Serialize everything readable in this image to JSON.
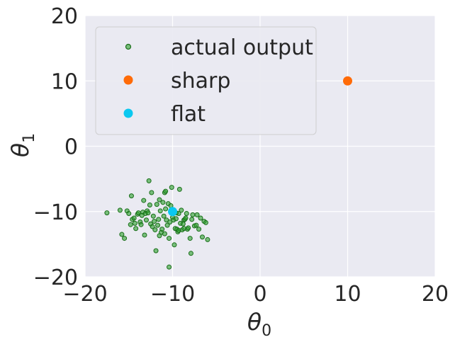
{
  "chart_data": {
    "type": "scatter",
    "title": "",
    "xlabel": "θ",
    "xlabel_sub": "0",
    "ylabel": "θ",
    "ylabel_sub": "1",
    "xlim": [
      -20,
      20
    ],
    "ylim": [
      -20,
      20
    ],
    "xticks": [
      -20,
      -10,
      0,
      10,
      20
    ],
    "yticks": [
      -20,
      -10,
      0,
      10,
      20
    ],
    "xtick_labels": [
      "−20",
      "−10",
      "0",
      "10",
      "20"
    ],
    "ytick_labels": [
      "−20",
      "−10",
      "0",
      "10",
      "20"
    ],
    "grid": true,
    "legend_position": "top-left",
    "series": [
      {
        "name": "actual output",
        "color": "#2ca02c",
        "marker": "small-circle",
        "points": [
          [
            -17.5,
            -10.2
          ],
          [
            -16.0,
            -9.8
          ],
          [
            -15.8,
            -13.5
          ],
          [
            -15.5,
            -14.1
          ],
          [
            -15.2,
            -9.9
          ],
          [
            -15.0,
            -10.3
          ],
          [
            -14.8,
            -12.0
          ],
          [
            -14.7,
            -7.6
          ],
          [
            -14.6,
            -11.2
          ],
          [
            -14.4,
            -11.0
          ],
          [
            -14.2,
            -12.6
          ],
          [
            -14.0,
            -10.4
          ],
          [
            -13.9,
            -10.2
          ],
          [
            -13.7,
            -11.6
          ],
          [
            -13.6,
            -12.0
          ],
          [
            -13.4,
            -10.1
          ],
          [
            -13.3,
            -8.3
          ],
          [
            -13.2,
            -13.6
          ],
          [
            -13.1,
            -10.3
          ],
          [
            -12.9,
            -9.9
          ],
          [
            -12.7,
            -5.3
          ],
          [
            -12.6,
            -9.0
          ],
          [
            -12.5,
            -11.9
          ],
          [
            -12.4,
            -7.1
          ],
          [
            -12.3,
            -12.3
          ],
          [
            -12.2,
            -10.7
          ],
          [
            -12.0,
            -12.8
          ],
          [
            -11.9,
            -16.0
          ],
          [
            -11.8,
            -8.9
          ],
          [
            -11.7,
            -12.1
          ],
          [
            -11.6,
            -11.2
          ],
          [
            -11.5,
            -8.2
          ],
          [
            -11.4,
            -9.9
          ],
          [
            -11.3,
            -13.2
          ],
          [
            -11.2,
            -12.7
          ],
          [
            -11.1,
            -8.6
          ],
          [
            -11.0,
            -10.7
          ],
          [
            -10.9,
            -7.1
          ],
          [
            -10.8,
            -6.9
          ],
          [
            -10.7,
            -11.3
          ],
          [
            -10.6,
            -12.1
          ],
          [
            -10.5,
            -8.8
          ],
          [
            -10.4,
            -14.1
          ],
          [
            -10.3,
            -11.6
          ],
          [
            -10.2,
            -9.1
          ],
          [
            -10.1,
            -6.3
          ],
          [
            -10.0,
            -10.9
          ],
          [
            -9.9,
            -11.3
          ],
          [
            -9.8,
            -15.1
          ],
          [
            -9.7,
            -12.6
          ],
          [
            -9.6,
            -11.1
          ],
          [
            -9.5,
            -12.7
          ],
          [
            -9.4,
            -13.1
          ],
          [
            -9.3,
            -10.3
          ],
          [
            -9.2,
            -6.6
          ],
          [
            -9.1,
            -11.8
          ],
          [
            -9.0,
            -9.8
          ],
          [
            -8.9,
            -12.8
          ],
          [
            -8.8,
            -11.9
          ],
          [
            -8.7,
            -11.3
          ],
          [
            -8.6,
            -11.2
          ],
          [
            -8.5,
            -11.0
          ],
          [
            -8.4,
            -10.3
          ],
          [
            -8.3,
            -12.7
          ],
          [
            -8.2,
            -12.5
          ],
          [
            -8.0,
            -14.1
          ],
          [
            -7.9,
            -16.4
          ],
          [
            -7.8,
            -11.2
          ],
          [
            -7.7,
            -10.5
          ],
          [
            -7.5,
            -12.2
          ],
          [
            -7.3,
            -12.1
          ],
          [
            -7.2,
            -10.5
          ],
          [
            -7.0,
            -12.7
          ],
          [
            -6.8,
            -11.0
          ],
          [
            -6.6,
            -13.9
          ],
          [
            -6.4,
            -11.5
          ],
          [
            -6.2,
            -11.7
          ],
          [
            -6.0,
            -14.3
          ],
          [
            -10.4,
            -18.5
          ],
          [
            -13.5,
            -10.6
          ],
          [
            -12.8,
            -10.2
          ],
          [
            -11.5,
            -13.7
          ],
          [
            -10.8,
            -9.6
          ],
          [
            -9.6,
            -10.2
          ],
          [
            -10.9,
            -13.4
          ],
          [
            -12.1,
            -11.5
          ],
          [
            -14.3,
            -11.8
          ],
          [
            -13.0,
            -11.3
          ],
          [
            -8.7,
            -12.6
          ],
          [
            -9.3,
            -12.9
          ]
        ]
      },
      {
        "name": "sharp",
        "color": "#ff6b08",
        "marker": "large-circle",
        "points": [
          [
            10,
            10
          ]
        ]
      },
      {
        "name": "flat",
        "color": "#0bc8f0",
        "marker": "large-circle",
        "points": [
          [
            -10,
            -10
          ]
        ]
      }
    ]
  },
  "colors": {
    "plot_background": "#eaeaf2",
    "grid": "#ffffff",
    "text": "#262626"
  }
}
